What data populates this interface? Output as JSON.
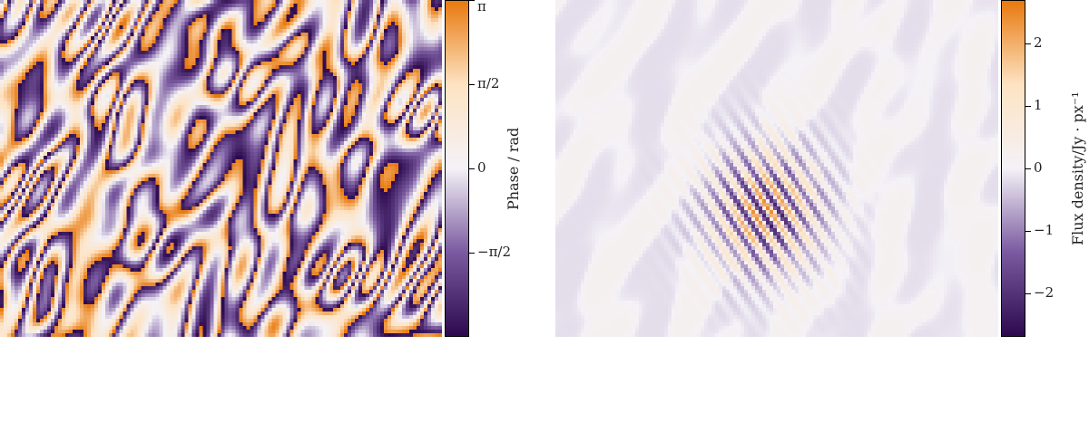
{
  "chart_data": [
    {
      "type": "heatmap",
      "title": "",
      "xlabel": "",
      "ylabel": "",
      "colormap": [
        "#2d0a4e",
        "#7a5aa0",
        "#f4f2f7",
        "#fde3c3",
        "#e8790e"
      ],
      "clim": [
        -3.14159,
        3.14159
      ],
      "colorbar": {
        "label": "Phase / rad",
        "ticks": [
          {
            "value": 3.14159,
            "label": "π"
          },
          {
            "value": 1.5708,
            "label": "π/2"
          },
          {
            "value": 0,
            "label": "0"
          },
          {
            "value": -1.5708,
            "label": "−π/2"
          }
        ]
      },
      "grid": false,
      "pattern": "wrapped phase, diagonal stripes"
    },
    {
      "type": "heatmap",
      "title": "",
      "xlabel": "",
      "ylabel": "",
      "colormap": [
        "#2d0a4e",
        "#7a5aa0",
        "#f4f2f7",
        "#fde3c3",
        "#e8790e"
      ],
      "clim": [
        -2.7,
        2.7
      ],
      "colorbar": {
        "label": "Flux density/Jy · px⁻¹",
        "ticks": [
          {
            "value": 2,
            "label": "2"
          },
          {
            "value": 1,
            "label": "1"
          },
          {
            "value": 0,
            "label": "0"
          },
          {
            "value": -1,
            "label": "−1"
          },
          {
            "value": -2,
            "label": "−2"
          }
        ]
      },
      "grid": false,
      "pattern": "central compact source with stripe sidelobes"
    }
  ]
}
